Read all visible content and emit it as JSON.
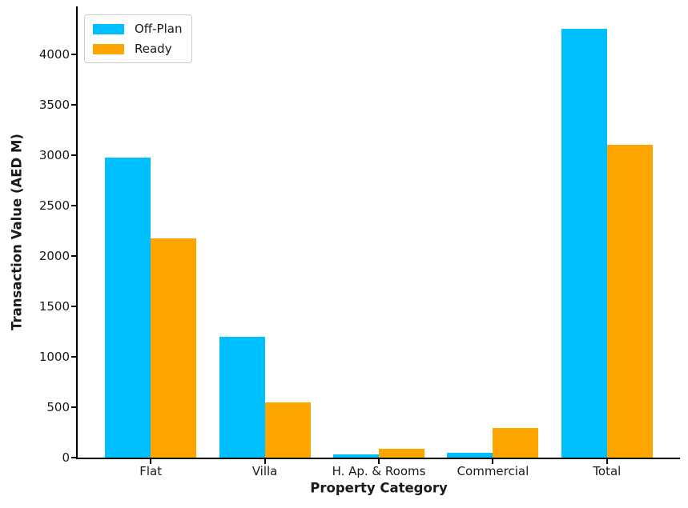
{
  "figure": {
    "background": "#ffffff"
  },
  "chart_data": {
    "type": "bar",
    "title": "",
    "xlabel": "Property Category",
    "ylabel": "Transaction Value (AED M)",
    "categories": [
      "Flat",
      "Villa",
      "H. Ap. & Rooms",
      "Commercial",
      "Total"
    ],
    "series": [
      {
        "name": "Off-Plan",
        "color": "#00BFFF",
        "values": [
          2975,
          1200,
          30,
          45,
          4250
        ]
      },
      {
        "name": "Ready",
        "color": "#FFA500",
        "values": [
          2170,
          550,
          85,
          295,
          3100
        ]
      }
    ],
    "ylim": [
      0,
      4473
    ],
    "yticks": [
      0,
      500,
      1000,
      1500,
      2000,
      2500,
      3000,
      3500,
      4000
    ],
    "bar_width_data_units": 0.4,
    "legend": {
      "position": "upper-left",
      "entries": [
        "Off-Plan",
        "Ready"
      ]
    },
    "grid": false,
    "axis_color": "#000000",
    "text_color": "#1a1a1a"
  }
}
